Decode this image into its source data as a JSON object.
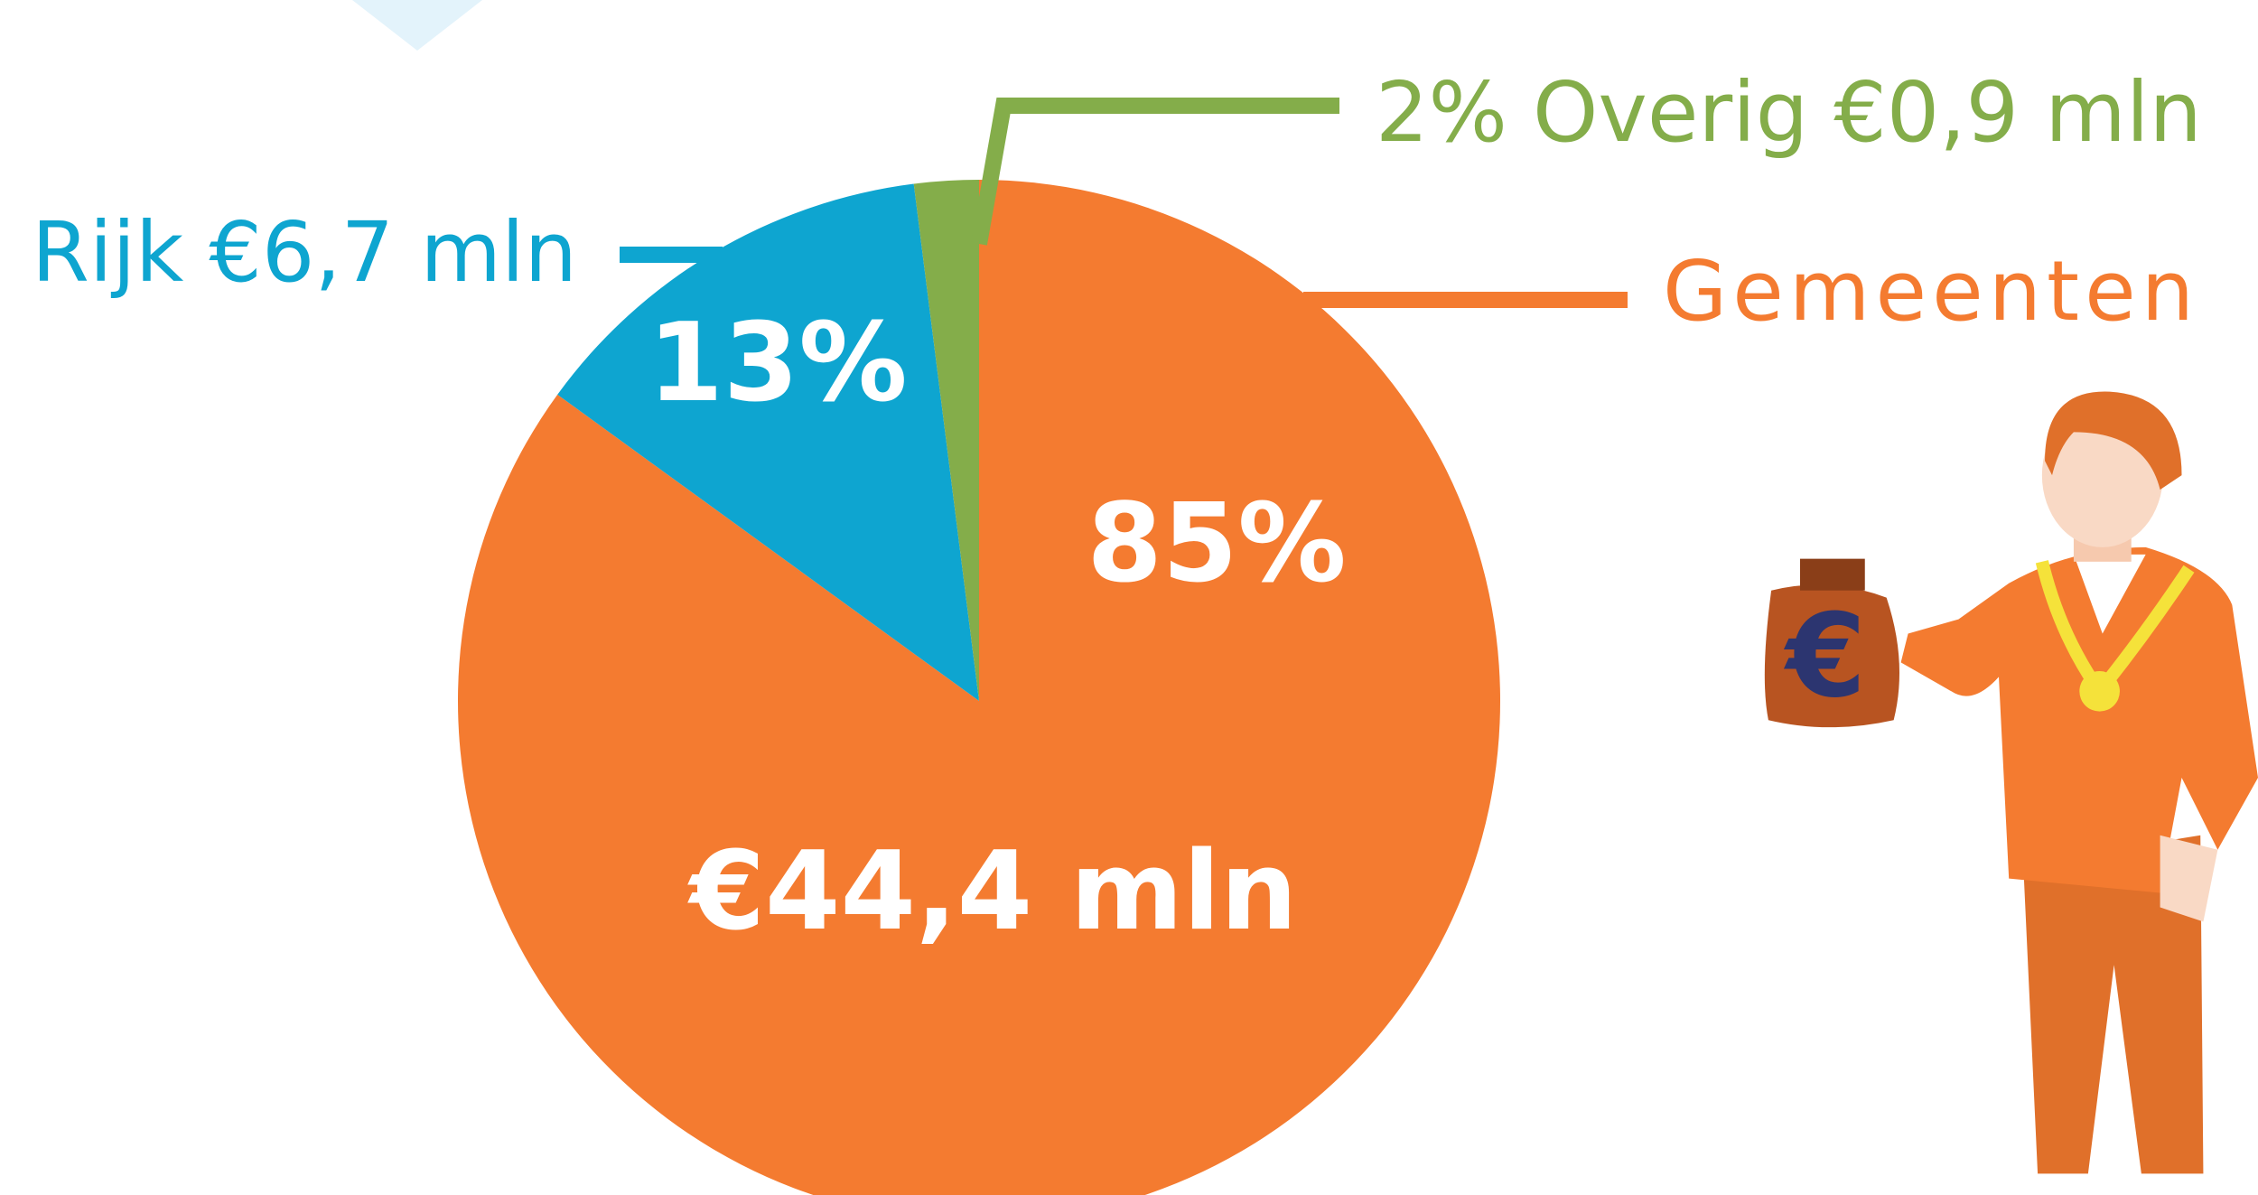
{
  "chart_data": {
    "type": "pie",
    "categories": [
      "Gemeenten",
      "Rijk",
      "Overig"
    ],
    "values": [
      85,
      13,
      2
    ],
    "value_labels": [
      "85%",
      "13%",
      "2%"
    ],
    "amounts": [
      44.4,
      6.7,
      0.9
    ],
    "amount_labels": [
      "€44,4 mln",
      "€6,7 mln",
      "€0,9 mln"
    ],
    "colors": [
      "#f47b30",
      "#0ea5d0",
      "#84ad4a"
    ]
  }
}
